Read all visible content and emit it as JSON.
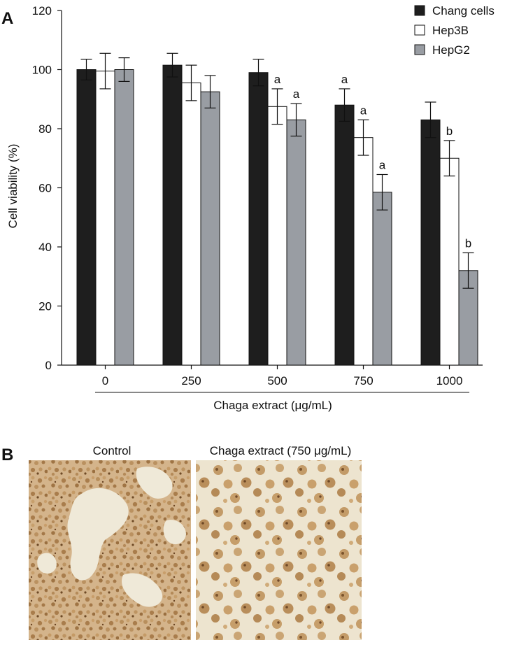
{
  "panel_a": {
    "letter": "A"
  },
  "panel_b": {
    "letter": "B",
    "photos": [
      {
        "caption": "Control",
        "texture": "dense-confluent-cells"
      },
      {
        "caption": "Chaga extract (750 μg/mL)",
        "texture": "sparse-rounded-cell-clusters"
      }
    ]
  },
  "chart_data": {
    "type": "bar",
    "categories": [
      "0",
      "250",
      "500",
      "750",
      "1000"
    ],
    "xlabel": "Chaga extract (μg/mL)",
    "ylabel": "Cell viability (%)",
    "ylim": [
      0,
      120
    ],
    "yticks": [
      0,
      20,
      40,
      60,
      80,
      100,
      120
    ],
    "legend_position": "top-right",
    "grid": false,
    "series": [
      {
        "name": "Chang cells",
        "color": "#1e1e1e",
        "values": [
          100,
          101.5,
          99,
          88,
          83
        ],
        "errors": [
          3.5,
          4,
          4.5,
          5.5,
          6
        ],
        "annotations": [
          "",
          "",
          "",
          "a",
          ""
        ]
      },
      {
        "name": "Hep3B",
        "color": "#ffffff",
        "values": [
          99.5,
          95.5,
          87.5,
          77,
          70
        ],
        "errors": [
          6,
          6,
          6,
          6,
          6
        ],
        "annotations": [
          "",
          "",
          "a",
          "a",
          "b"
        ]
      },
      {
        "name": "HepG2",
        "color": "#999da3",
        "values": [
          100,
          92.5,
          83,
          58.5,
          32
        ],
        "errors": [
          4,
          5.5,
          5.5,
          6,
          6
        ],
        "annotations": [
          "",
          "",
          "a",
          "a",
          "b"
        ]
      }
    ]
  }
}
